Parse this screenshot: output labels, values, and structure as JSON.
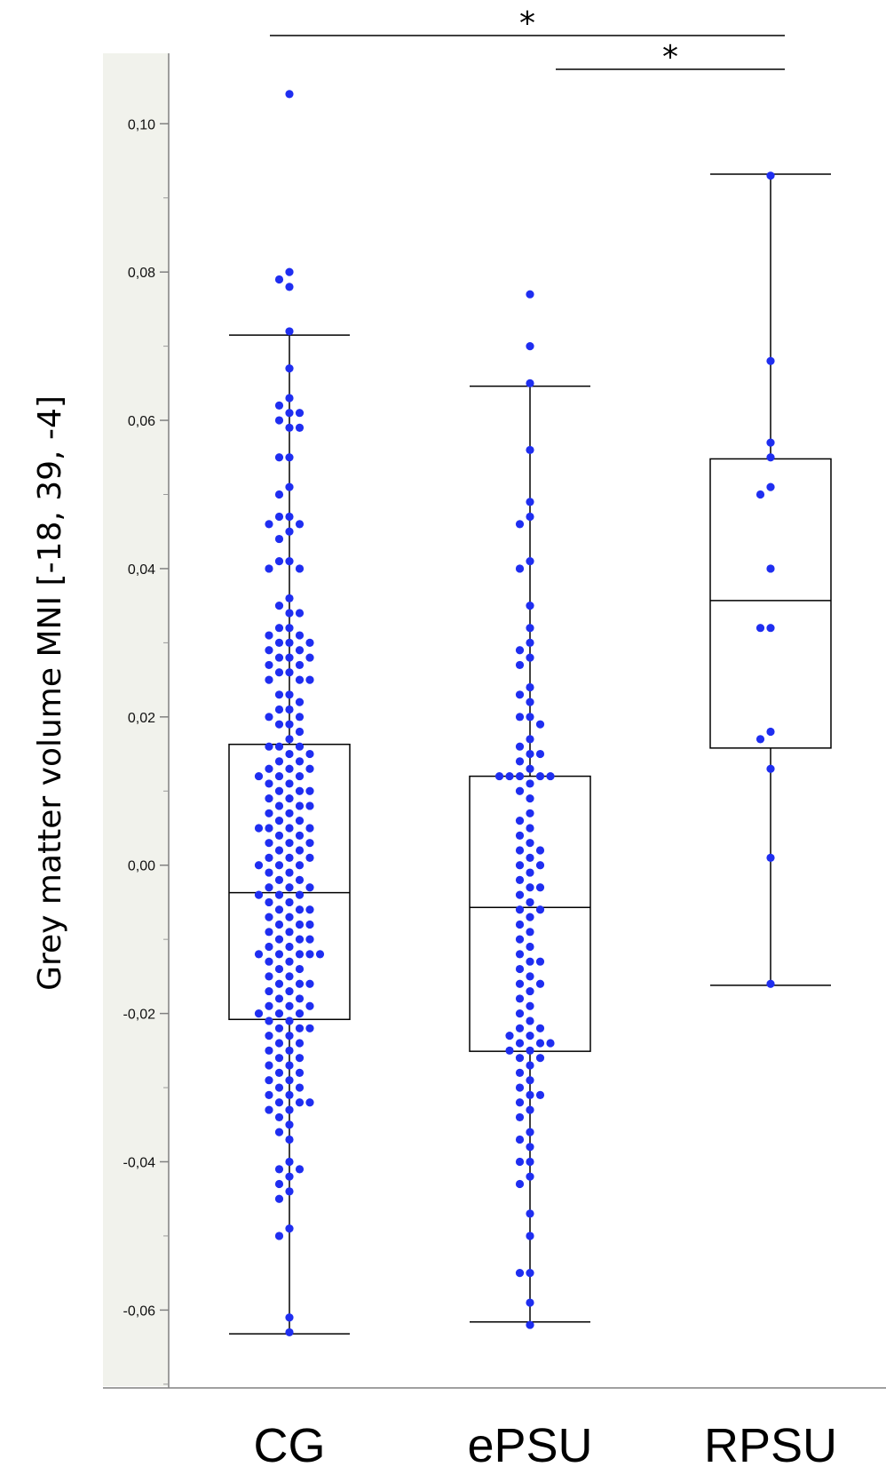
{
  "chart_data": {
    "type": "box",
    "ylabel": "Grey matter volume MNI [-18, 39, -4]",
    "xlabel": "",
    "title": "",
    "ylim": [
      -0.0705,
      0.1095
    ],
    "y_ticks": [
      -0.06,
      -0.04,
      -0.02,
      0.0,
      0.02,
      0.04,
      0.06,
      0.08,
      0.1
    ],
    "y_tick_labels": [
      "-0,06",
      "-0,04",
      "-0,02",
      "0,00",
      "0,02",
      "0,04",
      "0,06",
      "0,08",
      "0,10"
    ],
    "categories": [
      "CG",
      "ePSU",
      "RPSU"
    ],
    "point_color": "#1f2ef0",
    "boxes": [
      {
        "name": "CG",
        "whisker_low": -0.0632,
        "q1": -0.0208,
        "median": -0.0037,
        "q3": 0.0163,
        "whisker_high": 0.0715
      },
      {
        "name": "ePSU",
        "whisker_low": -0.0616,
        "q1": -0.0251,
        "median": -0.0057,
        "q3": 0.012,
        "whisker_high": 0.0646
      },
      {
        "name": "RPSU",
        "whisker_low": -0.0162,
        "q1": 0.0158,
        "median": 0.0357,
        "q3": 0.0548,
        "whisker_high": 0.0932
      }
    ],
    "points": [
      [
        0.104,
        0.08,
        0.079,
        0.078,
        0.072,
        0.067,
        0.063,
        0.062,
        0.061,
        0.061,
        0.06,
        0.059,
        0.059,
        0.055,
        0.055,
        0.051,
        0.05,
        0.047,
        0.047,
        0.046,
        0.046,
        0.045,
        0.044,
        0.041,
        0.041,
        0.04,
        0.04,
        0.036,
        0.035,
        0.034,
        0.034,
        0.032,
        0.032,
        0.031,
        0.031,
        0.03,
        0.03,
        0.03,
        0.029,
        0.029,
        0.028,
        0.028,
        0.028,
        0.027,
        0.027,
        0.026,
        0.026,
        0.025,
        0.025,
        0.025,
        0.023,
        0.023,
        0.022,
        0.021,
        0.021,
        0.02,
        0.02,
        0.019,
        0.019,
        0.018,
        0.017,
        0.016,
        0.016,
        0.016,
        0.015,
        0.015,
        0.014,
        0.014,
        0.013,
        0.013,
        0.013,
        0.012,
        0.012,
        0.012,
        0.011,
        0.011,
        0.01,
        0.01,
        0.01,
        0.009,
        0.009,
        0.008,
        0.008,
        0.008,
        0.007,
        0.007,
        0.006,
        0.006,
        0.005,
        0.005,
        0.005,
        0.005,
        0.004,
        0.004,
        0.003,
        0.003,
        0.003,
        0.002,
        0.002,
        0.001,
        0.001,
        0.001,
        0.0,
        0.0,
        0.0,
        -0.001,
        -0.001,
        -0.002,
        -0.002,
        -0.003,
        -0.003,
        -0.003,
        -0.004,
        -0.004,
        -0.004,
        -0.005,
        -0.005,
        -0.006,
        -0.006,
        -0.006,
        -0.007,
        -0.007,
        -0.008,
        -0.008,
        -0.008,
        -0.009,
        -0.009,
        -0.01,
        -0.01,
        -0.01,
        -0.011,
        -0.011,
        -0.012,
        -0.012,
        -0.012,
        -0.012,
        -0.012,
        -0.013,
        -0.013,
        -0.014,
        -0.014,
        -0.015,
        -0.015,
        -0.016,
        -0.016,
        -0.016,
        -0.017,
        -0.017,
        -0.018,
        -0.018,
        -0.019,
        -0.019,
        -0.019,
        -0.02,
        -0.02,
        -0.02,
        -0.021,
        -0.021,
        -0.022,
        -0.022,
        -0.022,
        -0.023,
        -0.023,
        -0.024,
        -0.024,
        -0.025,
        -0.025,
        -0.026,
        -0.026,
        -0.027,
        -0.027,
        -0.028,
        -0.028,
        -0.029,
        -0.029,
        -0.03,
        -0.03,
        -0.031,
        -0.031,
        -0.032,
        -0.032,
        -0.032,
        -0.033,
        -0.033,
        -0.034,
        -0.035,
        -0.036,
        -0.037,
        -0.04,
        -0.041,
        -0.041,
        -0.042,
        -0.043,
        -0.044,
        -0.045,
        -0.049,
        -0.05,
        -0.061,
        -0.063
      ],
      [
        0.077,
        0.07,
        0.065,
        0.056,
        0.049,
        0.047,
        0.046,
        0.041,
        0.04,
        0.035,
        0.032,
        0.03,
        0.029,
        0.028,
        0.027,
        0.024,
        0.023,
        0.022,
        0.02,
        0.02,
        0.019,
        0.017,
        0.016,
        0.015,
        0.015,
        0.014,
        0.013,
        0.012,
        0.012,
        0.012,
        0.012,
        0.012,
        0.011,
        0.01,
        0.009,
        0.007,
        0.006,
        0.005,
        0.004,
        0.003,
        0.002,
        0.002,
        0.001,
        0.0,
        0.0,
        -0.001,
        -0.002,
        -0.003,
        -0.003,
        -0.004,
        -0.005,
        -0.006,
        -0.006,
        -0.007,
        -0.008,
        -0.009,
        -0.01,
        -0.011,
        -0.012,
        -0.013,
        -0.013,
        -0.014,
        -0.015,
        -0.016,
        -0.016,
        -0.017,
        -0.018,
        -0.019,
        -0.02,
        -0.021,
        -0.022,
        -0.022,
        -0.023,
        -0.023,
        -0.024,
        -0.024,
        -0.024,
        -0.025,
        -0.025,
        -0.026,
        -0.026,
        -0.027,
        -0.028,
        -0.029,
        -0.03,
        -0.031,
        -0.031,
        -0.032,
        -0.033,
        -0.034,
        -0.036,
        -0.037,
        -0.038,
        -0.04,
        -0.04,
        -0.042,
        -0.043,
        -0.047,
        -0.05,
        -0.055,
        -0.055,
        -0.059,
        -0.062
      ],
      [
        0.093,
        0.068,
        0.057,
        0.055,
        0.051,
        0.05,
        0.04,
        0.032,
        0.032,
        0.018,
        0.017,
        0.013,
        0.001,
        -0.016
      ]
    ],
    "significance": [
      {
        "from": "CG",
        "to": "RPSU",
        "label": "*"
      },
      {
        "from": "ePSU",
        "to": "RPSU",
        "label": "*"
      }
    ]
  }
}
